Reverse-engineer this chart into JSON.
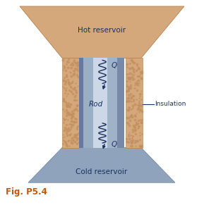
{
  "fig_width": 2.89,
  "fig_height": 2.91,
  "dpi": 100,
  "bg_color": "#ffffff",
  "hot_reservoir_color": "#d4a87a",
  "cold_reservoir_color": "#8fa4bc",
  "insulation_base_color": "#d4a87a",
  "insulation_texture_color": "#c49060",
  "insulation_border_color": "#b87848",
  "rod_dark": "#7888a0",
  "rod_mid": "#b0c0d4",
  "rod_light": "#d0dce8",
  "hot_text": "Hot reservoir",
  "cold_text": "Cold reservoir",
  "rod_text": "Rod",
  "insulation_text": "Insulation",
  "fig_label": "Fig. P5.4",
  "fig_label_color": "#cc5500",
  "Q_color": "#1a3060",
  "arrow_color": "#1a3060",
  "label_color": "#1a3060"
}
